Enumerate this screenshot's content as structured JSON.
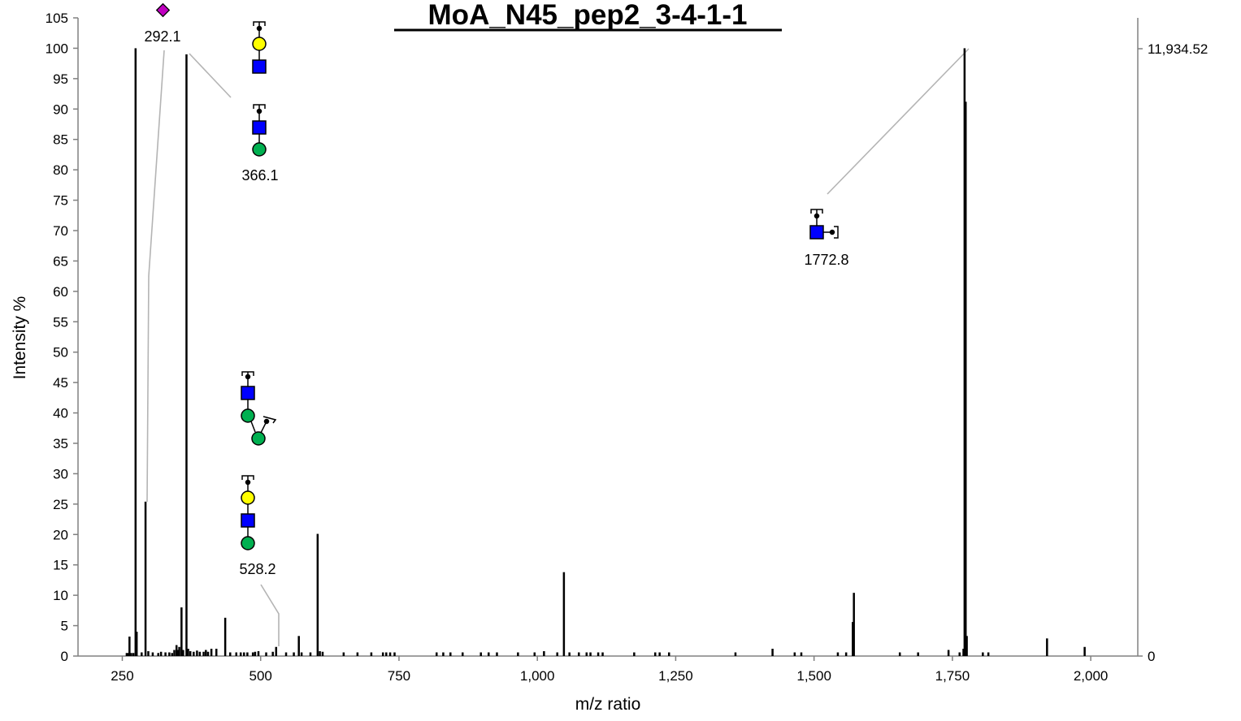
{
  "chart_data": {
    "type": "bar",
    "title": "MoA_N45_pep2_3-4-1-1",
    "xlabel": "m/z ratio",
    "ylabel": "Intensity %",
    "xlim": [
      170,
      2085
    ],
    "ylim": [
      0,
      105
    ],
    "x_ticks": [
      250,
      500,
      750,
      1000,
      1250,
      1500,
      1750,
      2000
    ],
    "x_tick_labels": [
      "250",
      "500",
      "750",
      "1,000",
      "1,250",
      "1,500",
      "1,750",
      "2,000"
    ],
    "y_ticks": [
      0,
      5,
      10,
      15,
      20,
      25,
      30,
      35,
      40,
      45,
      50,
      55,
      60,
      65,
      70,
      75,
      80,
      85,
      90,
      95,
      100,
      105
    ],
    "y_tick_labels": [
      "0",
      "5",
      "10",
      "15",
      "20",
      "25",
      "30",
      "35",
      "40",
      "45",
      "50",
      "55",
      "60",
      "65",
      "70",
      "75",
      "80",
      "85",
      "90",
      "95",
      "100",
      "105"
    ],
    "right_axis_labels": {
      "top": "11,934.52",
      "bottom": "0"
    },
    "grid": false,
    "series": [
      {
        "peaks": [
          {
            "mz": 258,
            "i": 0.5
          },
          {
            "mz": 261,
            "i": 0.5
          },
          {
            "mz": 263,
            "i": 3.2
          },
          {
            "mz": 266,
            "i": 0.5
          },
          {
            "mz": 270,
            "i": 0.5
          },
          {
            "mz": 274,
            "i": 100
          },
          {
            "mz": 276,
            "i": 4.0
          },
          {
            "mz": 285,
            "i": 0.6
          },
          {
            "mz": 292,
            "i": 25.4
          },
          {
            "mz": 297,
            "i": 0.8
          },
          {
            "mz": 305,
            "i": 0.6
          },
          {
            "mz": 315,
            "i": 0.5
          },
          {
            "mz": 320,
            "i": 0.7
          },
          {
            "mz": 328,
            "i": 0.6
          },
          {
            "mz": 335,
            "i": 0.6
          },
          {
            "mz": 340,
            "i": 0.5
          },
          {
            "mz": 344,
            "i": 1.0
          },
          {
            "mz": 348,
            "i": 1.8
          },
          {
            "mz": 350,
            "i": 1.0
          },
          {
            "mz": 353,
            "i": 1.5
          },
          {
            "mz": 357,
            "i": 8.0
          },
          {
            "mz": 360,
            "i": 1.0
          },
          {
            "mz": 366,
            "i": 99.0
          },
          {
            "mz": 369,
            "i": 1.2
          },
          {
            "mz": 373,
            "i": 0.8
          },
          {
            "mz": 379,
            "i": 0.7
          },
          {
            "mz": 385,
            "i": 0.9
          },
          {
            "mz": 390,
            "i": 0.7
          },
          {
            "mz": 397,
            "i": 0.7
          },
          {
            "mz": 401,
            "i": 1.0
          },
          {
            "mz": 405,
            "i": 0.7
          },
          {
            "mz": 411,
            "i": 1.2
          },
          {
            "mz": 420,
            "i": 1.2
          },
          {
            "mz": 436,
            "i": 6.3
          },
          {
            "mz": 445,
            "i": 0.6
          },
          {
            "mz": 456,
            "i": 0.6
          },
          {
            "mz": 464,
            "i": 0.6
          },
          {
            "mz": 470,
            "i": 0.6
          },
          {
            "mz": 476,
            "i": 0.6
          },
          {
            "mz": 486,
            "i": 0.6
          },
          {
            "mz": 490,
            "i": 0.7
          },
          {
            "mz": 496,
            "i": 0.8
          },
          {
            "mz": 510,
            "i": 0.6
          },
          {
            "mz": 522,
            "i": 0.7
          },
          {
            "mz": 528,
            "i": 1.5
          },
          {
            "mz": 546,
            "i": 0.6
          },
          {
            "mz": 560,
            "i": 0.6
          },
          {
            "mz": 569,
            "i": 3.3
          },
          {
            "mz": 574,
            "i": 0.6
          },
          {
            "mz": 590,
            "i": 0.6
          },
          {
            "mz": 603,
            "i": 20.1
          },
          {
            "mz": 607,
            "i": 0.8
          },
          {
            "mz": 612,
            "i": 0.7
          },
          {
            "mz": 650,
            "i": 0.6
          },
          {
            "mz": 675,
            "i": 0.6
          },
          {
            "mz": 700,
            "i": 0.6
          },
          {
            "mz": 721,
            "i": 0.6
          },
          {
            "mz": 727,
            "i": 0.6
          },
          {
            "mz": 734,
            "i": 0.6
          },
          {
            "mz": 742,
            "i": 0.6
          },
          {
            "mz": 818,
            "i": 0.6
          },
          {
            "mz": 830,
            "i": 0.6
          },
          {
            "mz": 843,
            "i": 0.6
          },
          {
            "mz": 865,
            "i": 0.6
          },
          {
            "mz": 898,
            "i": 0.6
          },
          {
            "mz": 912,
            "i": 0.6
          },
          {
            "mz": 927,
            "i": 0.6
          },
          {
            "mz": 965,
            "i": 0.6
          },
          {
            "mz": 995,
            "i": 0.6
          },
          {
            "mz": 1012,
            "i": 0.8
          },
          {
            "mz": 1036,
            "i": 0.6
          },
          {
            "mz": 1048,
            "i": 13.8
          },
          {
            "mz": 1058,
            "i": 0.6
          },
          {
            "mz": 1075,
            "i": 0.6
          },
          {
            "mz": 1089,
            "i": 0.6
          },
          {
            "mz": 1096,
            "i": 0.6
          },
          {
            "mz": 1110,
            "i": 0.6
          },
          {
            "mz": 1118,
            "i": 0.6
          },
          {
            "mz": 1175,
            "i": 0.6
          },
          {
            "mz": 1213,
            "i": 0.6
          },
          {
            "mz": 1221,
            "i": 0.6
          },
          {
            "mz": 1238,
            "i": 0.6
          },
          {
            "mz": 1358,
            "i": 0.6
          },
          {
            "mz": 1425,
            "i": 1.2
          },
          {
            "mz": 1465,
            "i": 0.6
          },
          {
            "mz": 1477,
            "i": 0.6
          },
          {
            "mz": 1543,
            "i": 0.6
          },
          {
            "mz": 1558,
            "i": 0.6
          },
          {
            "mz": 1570,
            "i": 5.6
          },
          {
            "mz": 1572,
            "i": 10.4
          },
          {
            "mz": 1655,
            "i": 0.6
          },
          {
            "mz": 1688,
            "i": 0.6
          },
          {
            "mz": 1743,
            "i": 1.0
          },
          {
            "mz": 1763,
            "i": 0.6
          },
          {
            "mz": 1770,
            "i": 1.2
          },
          {
            "mz": 1772,
            "i": 100
          },
          {
            "mz": 1774,
            "i": 91.2
          },
          {
            "mz": 1776,
            "i": 3.3
          },
          {
            "mz": 1805,
            "i": 0.6
          },
          {
            "mz": 1815,
            "i": 0.6
          },
          {
            "mz": 1921,
            "i": 2.9
          },
          {
            "mz": 1989,
            "i": 1.5
          }
        ]
      }
    ],
    "annotations": [
      {
        "label": "292.1",
        "glycan": [
          "neuac-diamond"
        ],
        "peak_mz": 292
      },
      {
        "label": "366.1",
        "glycan": [
          "gal-circle",
          "glcnac-square",
          "glcnac-square",
          "man-circle"
        ],
        "peak_mz": 366
      },
      {
        "label": "528.2",
        "glycan": [
          "glcnac-square",
          "man-circle",
          "man-circle"
        ],
        "peak_mz": 528
      },
      {
        "label": "",
        "glycan": [
          "gal-circle",
          "glcnac-square",
          "man-circle"
        ],
        "peak_mz": 528
      },
      {
        "label": "1772.8",
        "glycan": [
          "glcnac-square"
        ],
        "peak_mz": 1772
      }
    ],
    "colors": {
      "bars": "#000000",
      "axis": "#808080",
      "leader": "#b4b4b4",
      "glcnac": "#0000ff",
      "galactose": "#ffff00",
      "mannose": "#00b050",
      "neuac": "#c000c0"
    }
  }
}
